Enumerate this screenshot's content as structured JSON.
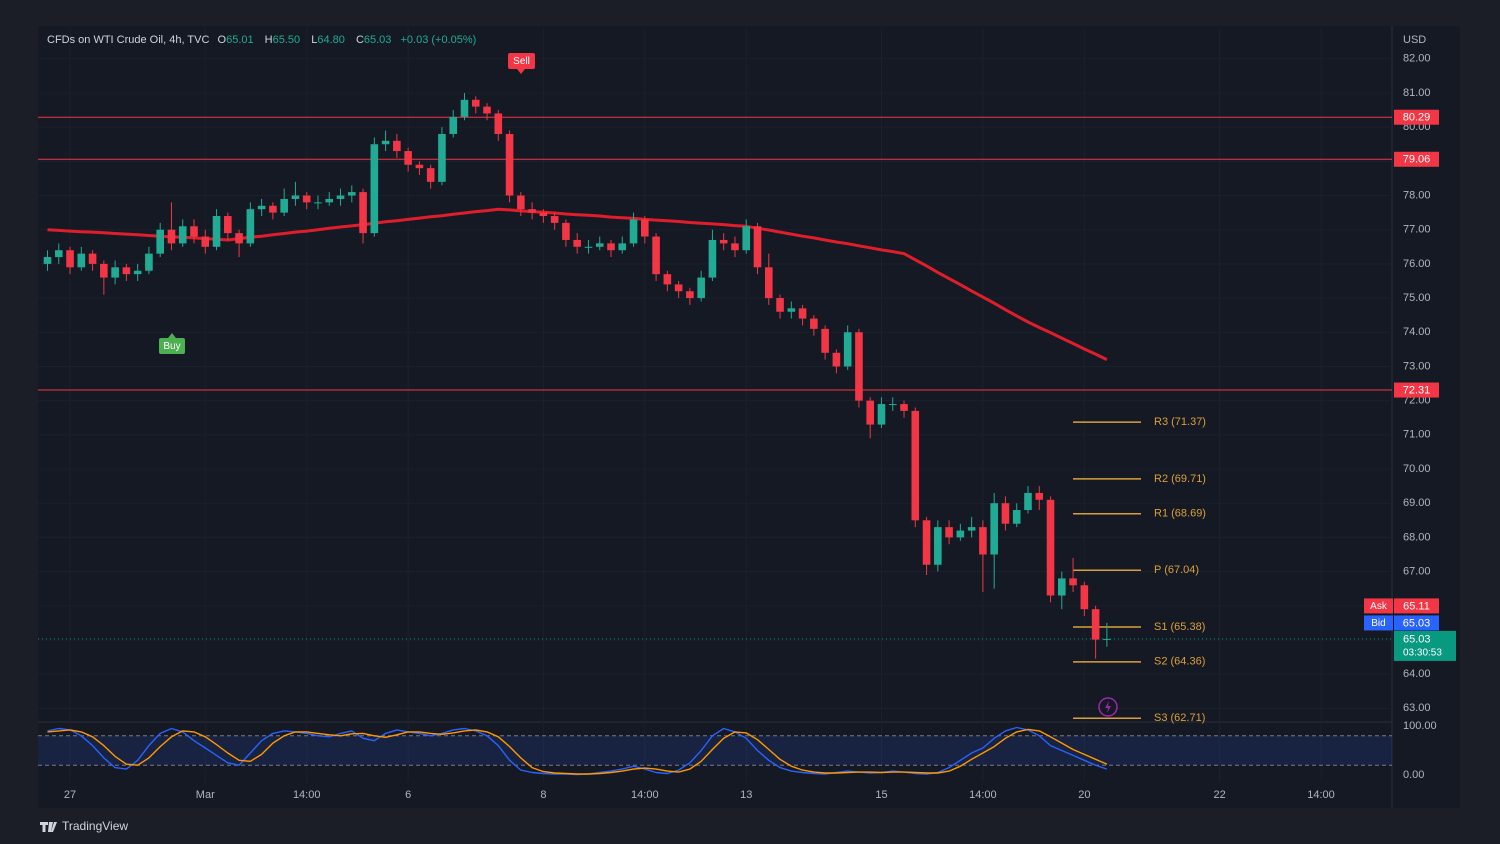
{
  "chart_data": {
    "type": "candlestick",
    "title": "CFDs on WTI Crude Oil, 4h, TVC",
    "legend_values": [
      {
        "key": "O",
        "value": "65.01"
      },
      {
        "key": "H",
        "value": "65.50"
      },
      {
        "key": "L",
        "value": "64.80"
      },
      {
        "key": "C",
        "value": "65.03"
      }
    ],
    "change": "+0.03 (+0.05%)",
    "currency": "USD",
    "up_color": "#22ab94",
    "down_color": "#f23645",
    "categories": [
      null,
      null,
      "27",
      null,
      null,
      null,
      null,
      null,
      null,
      null,
      null,
      null,
      null,
      null,
      "Mar",
      null,
      null,
      null,
      null,
      null,
      null,
      null,
      null,
      "14:00",
      null,
      null,
      null,
      null,
      null,
      null,
      null,
      null,
      "6",
      null,
      null,
      null,
      null,
      null,
      null,
      null,
      null,
      null,
      null,
      null,
      "8",
      null,
      null,
      null,
      null,
      null,
      null,
      null,
      null,
      "14:00",
      null,
      null,
      null,
      null,
      null,
      null,
      null,
      null,
      "13",
      null,
      null,
      null,
      null,
      null,
      null,
      null,
      null,
      null,
      null,
      null,
      "15",
      null,
      null,
      null,
      null,
      null,
      null,
      null,
      null,
      "14:00",
      null,
      null,
      null,
      null,
      null,
      null,
      null,
      null,
      "20",
      null,
      null,
      null,
      null,
      null,
      null,
      null,
      null,
      null,
      null,
      null,
      "22",
      null,
      null,
      null,
      null,
      null,
      null,
      null,
      null,
      "14:00",
      null,
      null,
      null,
      null,
      null,
      null
    ],
    "open": [
      76.0,
      76.2,
      76.4,
      75.9,
      76.3,
      76.0,
      75.6,
      75.9,
      75.7,
      75.8,
      76.3,
      77.0,
      76.6,
      77.1,
      76.8,
      76.5,
      77.4,
      76.9,
      76.6,
      77.6,
      77.7,
      77.5,
      77.9,
      78.0,
      77.8,
      77.8,
      77.9,
      78.0,
      78.1,
      76.9,
      79.5,
      79.6,
      79.3,
      78.9,
      78.8,
      78.4,
      79.8,
      80.3,
      80.8,
      80.6,
      80.4,
      79.8,
      78.0,
      77.6,
      77.5,
      77.4,
      77.2,
      76.7,
      76.5,
      76.5,
      76.6,
      76.4,
      76.6,
      77.3,
      76.8,
      75.7,
      75.4,
      75.2,
      75.0,
      75.6,
      76.7,
      76.6,
      76.4,
      77.1,
      75.9,
      75.0,
      74.6,
      74.7,
      74.4,
      74.1,
      73.4,
      73.0,
      74.0,
      72.0,
      71.3,
      71.9,
      71.9,
      71.7,
      68.5,
      67.2,
      68.3,
      68.0,
      68.2,
      68.3,
      67.5,
      69.0,
      68.4,
      68.8,
      69.3,
      69.1,
      66.3,
      66.8,
      66.6,
      65.9,
      65.01,
      null,
      null,
      null,
      null,
      null,
      null,
      null,
      null,
      null,
      null,
      null,
      null,
      null,
      null,
      null,
      null,
      null,
      null,
      null,
      null,
      null,
      null,
      null,
      null,
      null
    ],
    "high": [
      76.4,
      76.6,
      76.5,
      76.5,
      76.4,
      76.1,
      76.1,
      76.0,
      76.0,
      76.5,
      77.2,
      77.8,
      77.3,
      77.3,
      77.0,
      77.6,
      77.5,
      77.0,
      77.8,
      77.9,
      77.8,
      78.2,
      78.4,
      78.1,
      78.0,
      78.1,
      78.2,
      78.3,
      78.2,
      79.7,
      79.9,
      79.8,
      79.4,
      79.0,
      78.9,
      80.0,
      80.5,
      81.0,
      80.9,
      80.7,
      80.5,
      79.9,
      78.1,
      77.8,
      77.6,
      77.5,
      77.3,
      76.9,
      76.7,
      76.8,
      76.7,
      76.8,
      77.5,
      77.4,
      76.9,
      75.8,
      75.5,
      75.3,
      75.8,
      77.0,
      76.9,
      76.8,
      77.3,
      77.2,
      76.3,
      75.1,
      74.9,
      74.8,
      74.5,
      74.2,
      73.5,
      74.2,
      74.1,
      72.1,
      72.1,
      72.1,
      72.0,
      71.8,
      68.6,
      68.5,
      68.5,
      68.4,
      68.6,
      68.5,
      69.3,
      69.2,
      69.0,
      69.5,
      69.5,
      69.2,
      67.0,
      67.4,
      66.7,
      66.0,
      65.5,
      null,
      null,
      null,
      null,
      null,
      null,
      null,
      null,
      null,
      null,
      null,
      null,
      null,
      null,
      null,
      null,
      null,
      null,
      null,
      null,
      null,
      null,
      null,
      null,
      null
    ],
    "low": [
      75.8,
      76.0,
      75.7,
      75.8,
      75.8,
      75.1,
      75.4,
      75.5,
      75.5,
      75.7,
      76.2,
      76.4,
      76.5,
      76.6,
      76.3,
      76.4,
      76.7,
      76.2,
      76.5,
      77.4,
      77.3,
      77.4,
      77.7,
      77.6,
      77.6,
      77.7,
      77.7,
      77.8,
      76.6,
      76.8,
      79.3,
      79.1,
      78.7,
      78.6,
      78.2,
      78.3,
      79.7,
      80.2,
      80.4,
      80.2,
      79.6,
      77.8,
      77.4,
      77.3,
      77.2,
      77.0,
      76.5,
      76.3,
      76.3,
      76.4,
      76.2,
      76.3,
      76.5,
      76.6,
      75.5,
      75.2,
      75.0,
      74.8,
      74.9,
      75.5,
      76.4,
      76.2,
      76.3,
      75.7,
      74.8,
      74.4,
      74.4,
      74.2,
      73.9,
      73.2,
      72.8,
      72.9,
      71.8,
      70.9,
      71.2,
      71.7,
      71.5,
      68.3,
      66.9,
      67.0,
      67.8,
      67.9,
      68.0,
      66.4,
      66.5,
      68.2,
      68.3,
      68.7,
      68.8,
      66.1,
      65.9,
      66.4,
      65.7,
      64.45,
      64.8,
      null,
      null,
      null,
      null,
      null,
      null,
      null,
      null,
      null,
      null,
      null,
      null,
      null,
      null,
      null,
      null,
      null,
      null,
      null,
      null,
      null,
      null,
      null,
      null,
      null
    ],
    "close": [
      76.2,
      76.4,
      75.9,
      76.3,
      76.0,
      75.6,
      75.9,
      75.7,
      75.8,
      76.3,
      77.0,
      76.6,
      77.1,
      76.8,
      76.5,
      77.4,
      76.9,
      76.6,
      77.6,
      77.7,
      77.5,
      77.9,
      78.0,
      77.8,
      77.8,
      77.9,
      78.0,
      78.1,
      76.9,
      79.5,
      79.6,
      79.3,
      78.9,
      78.8,
      78.4,
      79.8,
      80.3,
      80.8,
      80.6,
      80.4,
      79.8,
      78.0,
      77.6,
      77.5,
      77.4,
      77.2,
      76.7,
      76.5,
      76.5,
      76.6,
      76.4,
      76.6,
      77.3,
      76.8,
      75.7,
      75.4,
      75.2,
      75.0,
      75.6,
      76.7,
      76.6,
      76.4,
      77.1,
      75.9,
      75.0,
      74.6,
      74.7,
      74.4,
      74.1,
      73.4,
      73.0,
      74.0,
      72.0,
      71.3,
      71.9,
      71.9,
      71.7,
      68.5,
      67.2,
      68.3,
      68.0,
      68.2,
      68.3,
      67.5,
      69.0,
      68.4,
      68.8,
      69.3,
      69.1,
      66.3,
      66.8,
      66.6,
      65.9,
      65.01,
      65.03,
      null,
      null,
      null,
      null,
      null,
      null,
      null,
      null,
      null,
      null,
      null,
      null,
      null,
      null,
      null,
      null,
      null,
      null,
      null,
      null,
      null,
      null,
      null,
      null,
      null
    ],
    "moving_average": {
      "color": "#e01e2b",
      "values": [
        77.0,
        76.98,
        76.96,
        76.94,
        76.93,
        76.91,
        76.89,
        76.87,
        76.85,
        76.83,
        76.81,
        76.79,
        76.78,
        76.76,
        76.74,
        76.72,
        76.7,
        76.74,
        76.78,
        76.81,
        76.85,
        76.89,
        76.93,
        76.96,
        77.0,
        77.04,
        77.08,
        77.11,
        77.15,
        77.19,
        77.23,
        77.26,
        77.3,
        77.34,
        77.38,
        77.41,
        77.45,
        77.49,
        77.53,
        77.56,
        77.6,
        77.58,
        77.55,
        77.53,
        77.51,
        77.49,
        77.46,
        77.44,
        77.42,
        77.4,
        77.37,
        77.35,
        77.33,
        77.3,
        77.28,
        77.26,
        77.24,
        77.21,
        77.19,
        77.17,
        77.15,
        77.12,
        77.1,
        77.04,
        76.99,
        76.93,
        76.87,
        76.81,
        76.76,
        76.7,
        76.64,
        76.59,
        76.53,
        76.47,
        76.41,
        76.36,
        76.3,
        76.12,
        75.94,
        75.75,
        75.57,
        75.39,
        75.21,
        75.03,
        74.85,
        74.66,
        74.48,
        74.3,
        74.14,
        73.99,
        73.83,
        73.67,
        73.51,
        73.36,
        73.2,
        null,
        null,
        null,
        null,
        null,
        null,
        null,
        null,
        null,
        null,
        null,
        null,
        null,
        null,
        null,
        null,
        null,
        null,
        null,
        null,
        null,
        null,
        null,
        null,
        null
      ]
    },
    "ylim": [
      62.6,
      82.9
    ],
    "yticks": [
      {
        "value": 63,
        "label": "63.00"
      },
      {
        "value": 64,
        "label": "64.00"
      },
      {
        "value": 65,
        "label": "65.00"
      },
      {
        "value": 66,
        "label": "66.00"
      },
      {
        "value": 67,
        "label": "67.00"
      },
      {
        "value": 68,
        "label": "68.00"
      },
      {
        "value": 69,
        "label": "69.00"
      },
      {
        "value": 70,
        "label": "70.00"
      },
      {
        "value": 71,
        "label": "71.00"
      },
      {
        "value": 72,
        "label": "72.00"
      },
      {
        "value": 73,
        "label": "73.00"
      },
      {
        "value": 74,
        "label": "74.00"
      },
      {
        "value": 75,
        "label": "75.00"
      },
      {
        "value": 76,
        "label": "76.00"
      },
      {
        "value": 77,
        "label": "77.00"
      },
      {
        "value": 78,
        "label": "78.00"
      },
      {
        "value": 79,
        "label": "79.00"
      },
      {
        "value": 80,
        "label": "80.00"
      },
      {
        "value": 81,
        "label": "81.00"
      },
      {
        "value": 82,
        "label": "82.00"
      }
    ],
    "levels": [
      {
        "value": 80.29,
        "color": "#f23645"
      },
      {
        "value": 79.06,
        "color": "#f23645"
      },
      {
        "value": 72.31,
        "color": "#f23645"
      }
    ],
    "pivots": {
      "color": "#d9a03a",
      "levels": [
        {
          "label": "R3 (71.37)",
          "value": 71.37
        },
        {
          "label": "R2 (69.71)",
          "value": 69.71
        },
        {
          "label": "R1 (68.69)",
          "value": 68.69
        },
        {
          "label": "P (67.04)",
          "value": 67.04
        },
        {
          "label": "S1 (65.38)",
          "value": 65.38
        },
        {
          "label": "S2 (64.36)",
          "value": 64.36
        },
        {
          "label": "S3 (62.71)",
          "value": 62.71
        }
      ]
    },
    "quotes": {
      "ask_label": "Ask",
      "ask": 65.11,
      "bid_label": "Bid",
      "bid": 65.03,
      "last": 65.03,
      "countdown": "03:30:53"
    },
    "signals": {
      "buy": "Buy",
      "sell": "Sell"
    },
    "oscillator": {
      "ylim": [
        0,
        100
      ],
      "yticks": [
        {
          "value": 100,
          "label": "100.00"
        },
        {
          "value": 0,
          "label": "0.00"
        }
      ],
      "bands": [
        20,
        80
      ],
      "series": [
        {
          "color": "#2962ff",
          "values": [
            90,
            95,
            92,
            80,
            60,
            35,
            15,
            12,
            30,
            60,
            85,
            95,
            88,
            70,
            55,
            40,
            25,
            20,
            45,
            70,
            85,
            90,
            88,
            85,
            80,
            78,
            85,
            90,
            75,
            70,
            85,
            92,
            88,
            85,
            80,
            85,
            92,
            95,
            90,
            80,
            60,
            30,
            10,
            5,
            3,
            2,
            2,
            1,
            2,
            5,
            8,
            12,
            18,
            12,
            5,
            3,
            10,
            25,
            50,
            80,
            95,
            88,
            75,
            50,
            30,
            15,
            8,
            5,
            3,
            2,
            5,
            8,
            6,
            4,
            5,
            8,
            6,
            3,
            2,
            5,
            15,
            30,
            45,
            55,
            75,
            90,
            97,
            92,
            80,
            60,
            50,
            40,
            30,
            20,
            12,
            null,
            null,
            null,
            null,
            null,
            null,
            null,
            null,
            null,
            null,
            null,
            null,
            null,
            null,
            null,
            null,
            null,
            null,
            null,
            null,
            null,
            null,
            null,
            null,
            null
          ]
        },
        {
          "color": "#ff9800",
          "values": [
            88,
            90,
            92,
            88,
            78,
            60,
            38,
            22,
            20,
            35,
            58,
            78,
            90,
            88,
            78,
            62,
            45,
            30,
            28,
            42,
            65,
            80,
            88,
            88,
            85,
            82,
            80,
            84,
            85,
            80,
            77,
            82,
            88,
            88,
            85,
            83,
            86,
            90,
            92,
            88,
            78,
            58,
            35,
            15,
            7,
            4,
            3,
            2,
            2,
            3,
            5,
            8,
            12,
            14,
            12,
            8,
            6,
            12,
            28,
            52,
            75,
            88,
            86,
            72,
            52,
            32,
            18,
            10,
            6,
            4,
            4,
            5,
            6,
            6,
            5,
            6,
            6,
            5,
            4,
            4,
            8,
            18,
            32,
            45,
            58,
            75,
            88,
            93,
            90,
            78,
            65,
            52,
            42,
            32,
            22,
            null,
            null,
            null,
            null,
            null,
            null,
            null,
            null,
            null,
            null,
            null,
            null,
            null,
            null,
            null,
            null,
            null,
            null,
            null,
            null,
            null,
            null,
            null,
            null,
            null
          ]
        }
      ]
    },
    "branding": "TradingView"
  }
}
